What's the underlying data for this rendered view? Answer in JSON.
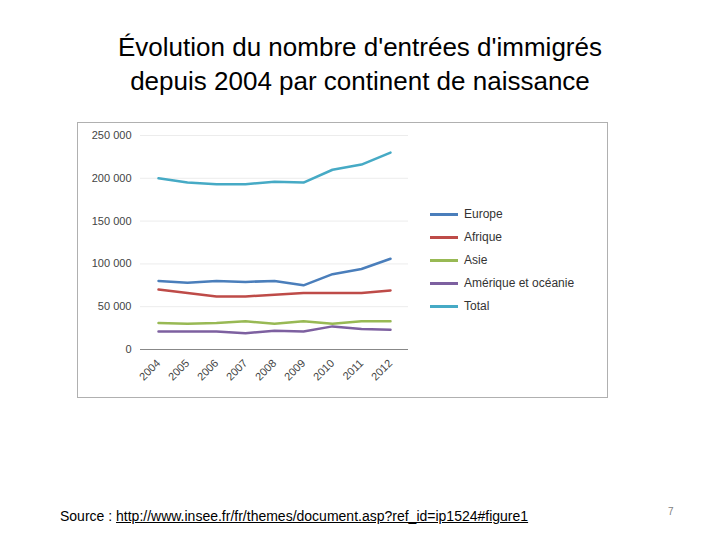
{
  "chart_data": {
    "type": "line",
    "title": "Évolution du nombre d'entrées d'immigrés depuis 2004 par continent de naissance",
    "x": [
      "2004",
      "2005",
      "2006",
      "2007",
      "2008",
      "2009",
      "2010",
      "2011",
      "2012"
    ],
    "series": [
      {
        "name": "Europe",
        "color": "#4a7ebb",
        "values": [
          80000,
          78000,
          80000,
          79000,
          80000,
          75000,
          88000,
          94000,
          106000
        ]
      },
      {
        "name": "Afrique",
        "color": "#be4b48",
        "values": [
          70000,
          66000,
          62000,
          62000,
          64000,
          66000,
          66000,
          66000,
          69000
        ]
      },
      {
        "name": "Asie",
        "color": "#98b954",
        "values": [
          31000,
          30000,
          31000,
          33000,
          30000,
          33000,
          30000,
          33000,
          33000
        ]
      },
      {
        "name": "Amérique et océanie",
        "color": "#7d60a0",
        "values": [
          21000,
          21000,
          21000,
          19000,
          22000,
          21000,
          27000,
          24000,
          23000
        ]
      },
      {
        "name": "Total",
        "color": "#46aac5",
        "values": [
          200000,
          195000,
          193000,
          193000,
          196000,
          195000,
          210000,
          216000,
          230000
        ]
      }
    ],
    "ylim": [
      0,
      250000
    ],
    "yticks": [
      0,
      {
        "value": 50000,
        "label": "50 000"
      },
      {
        "value": 100000,
        "label": "100 000"
      },
      {
        "value": 150000,
        "label": "150 000"
      },
      {
        "value": 200000,
        "label": "200 000"
      },
      {
        "value": 250000,
        "label": "250 000"
      }
    ],
    "grid": true,
    "legend": "right",
    "source_label": "Source :",
    "source_url": "http://www.insee.fr/fr/themes/document.asp?ref_id=ip1524#figure1",
    "page_number": 7
  }
}
